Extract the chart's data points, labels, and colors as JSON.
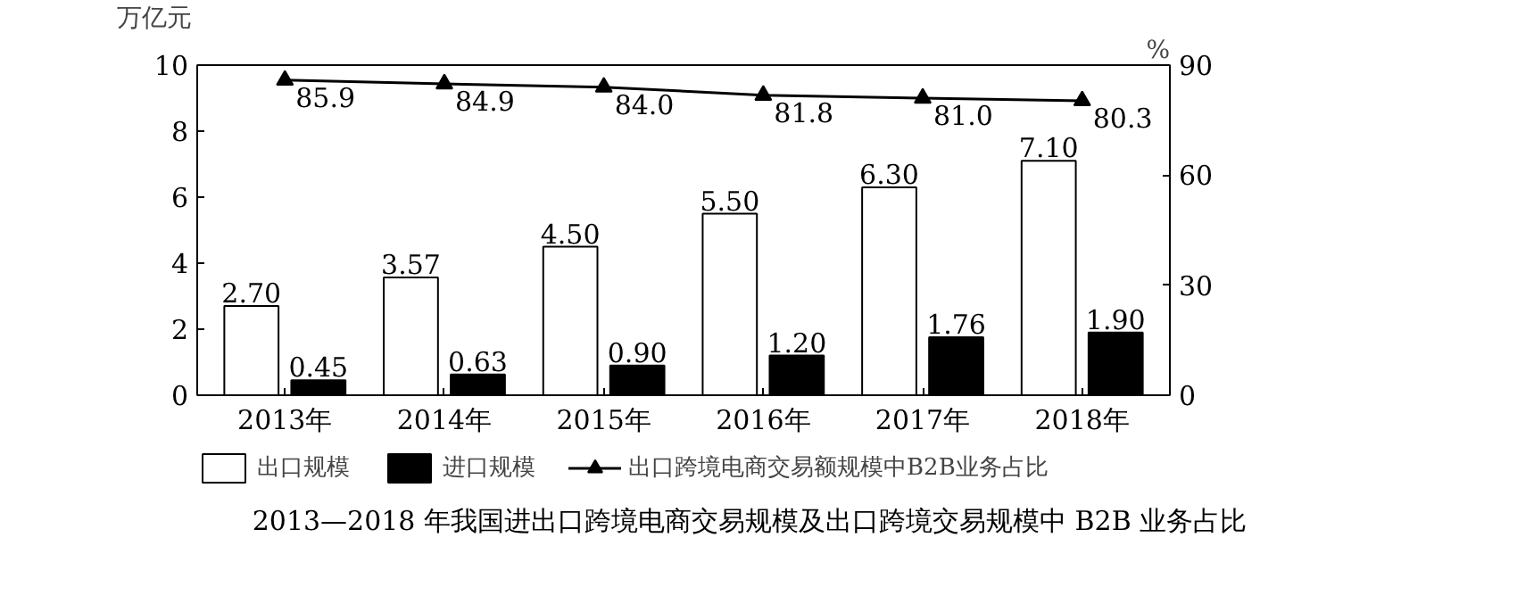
{
  "chart_data": {
    "type": "bar",
    "title": "2013—2018 年我国进出口跨境电商交易规模及出口跨境交易规模中 B2B 业务占比",
    "categories": [
      "2013年",
      "2014年",
      "2015年",
      "2016年",
      "2017年",
      "2018年"
    ],
    "ylabel": "万亿元",
    "y2label": "%",
    "ylim": [
      0,
      10
    ],
    "yticks": [
      0,
      2,
      4,
      6,
      8,
      10
    ],
    "y2lim": [
      0,
      90
    ],
    "y2ticks": [
      0,
      30,
      60,
      90
    ],
    "series": [
      {
        "name": "出口规模",
        "color": "#ffffff",
        "values": [
          2.7,
          3.57,
          4.5,
          5.5,
          6.3,
          7.1
        ],
        "value_labels": [
          "2.70",
          "3.57",
          "4.50",
          "5.50",
          "6.30",
          "7.10"
        ]
      },
      {
        "name": "进口规模",
        "color": "#000000",
        "values": [
          0.45,
          0.63,
          0.9,
          1.2,
          1.76,
          1.9
        ],
        "value_labels": [
          "0.45",
          "0.63",
          "0.90",
          "1.20",
          "1.76",
          "1.90"
        ]
      },
      {
        "name": "出口跨境电商交易额规模中B2B业务占比",
        "type": "line",
        "axis": "y2",
        "color": "#000000",
        "marker": "triangle",
        "values": [
          85.9,
          84.9,
          84.0,
          81.8,
          81.0,
          80.3
        ],
        "value_labels": [
          "85.9",
          "84.9",
          "84.0",
          "81.8",
          "81.0",
          "80.3"
        ]
      }
    ],
    "legend": "bottom",
    "grid": false
  }
}
